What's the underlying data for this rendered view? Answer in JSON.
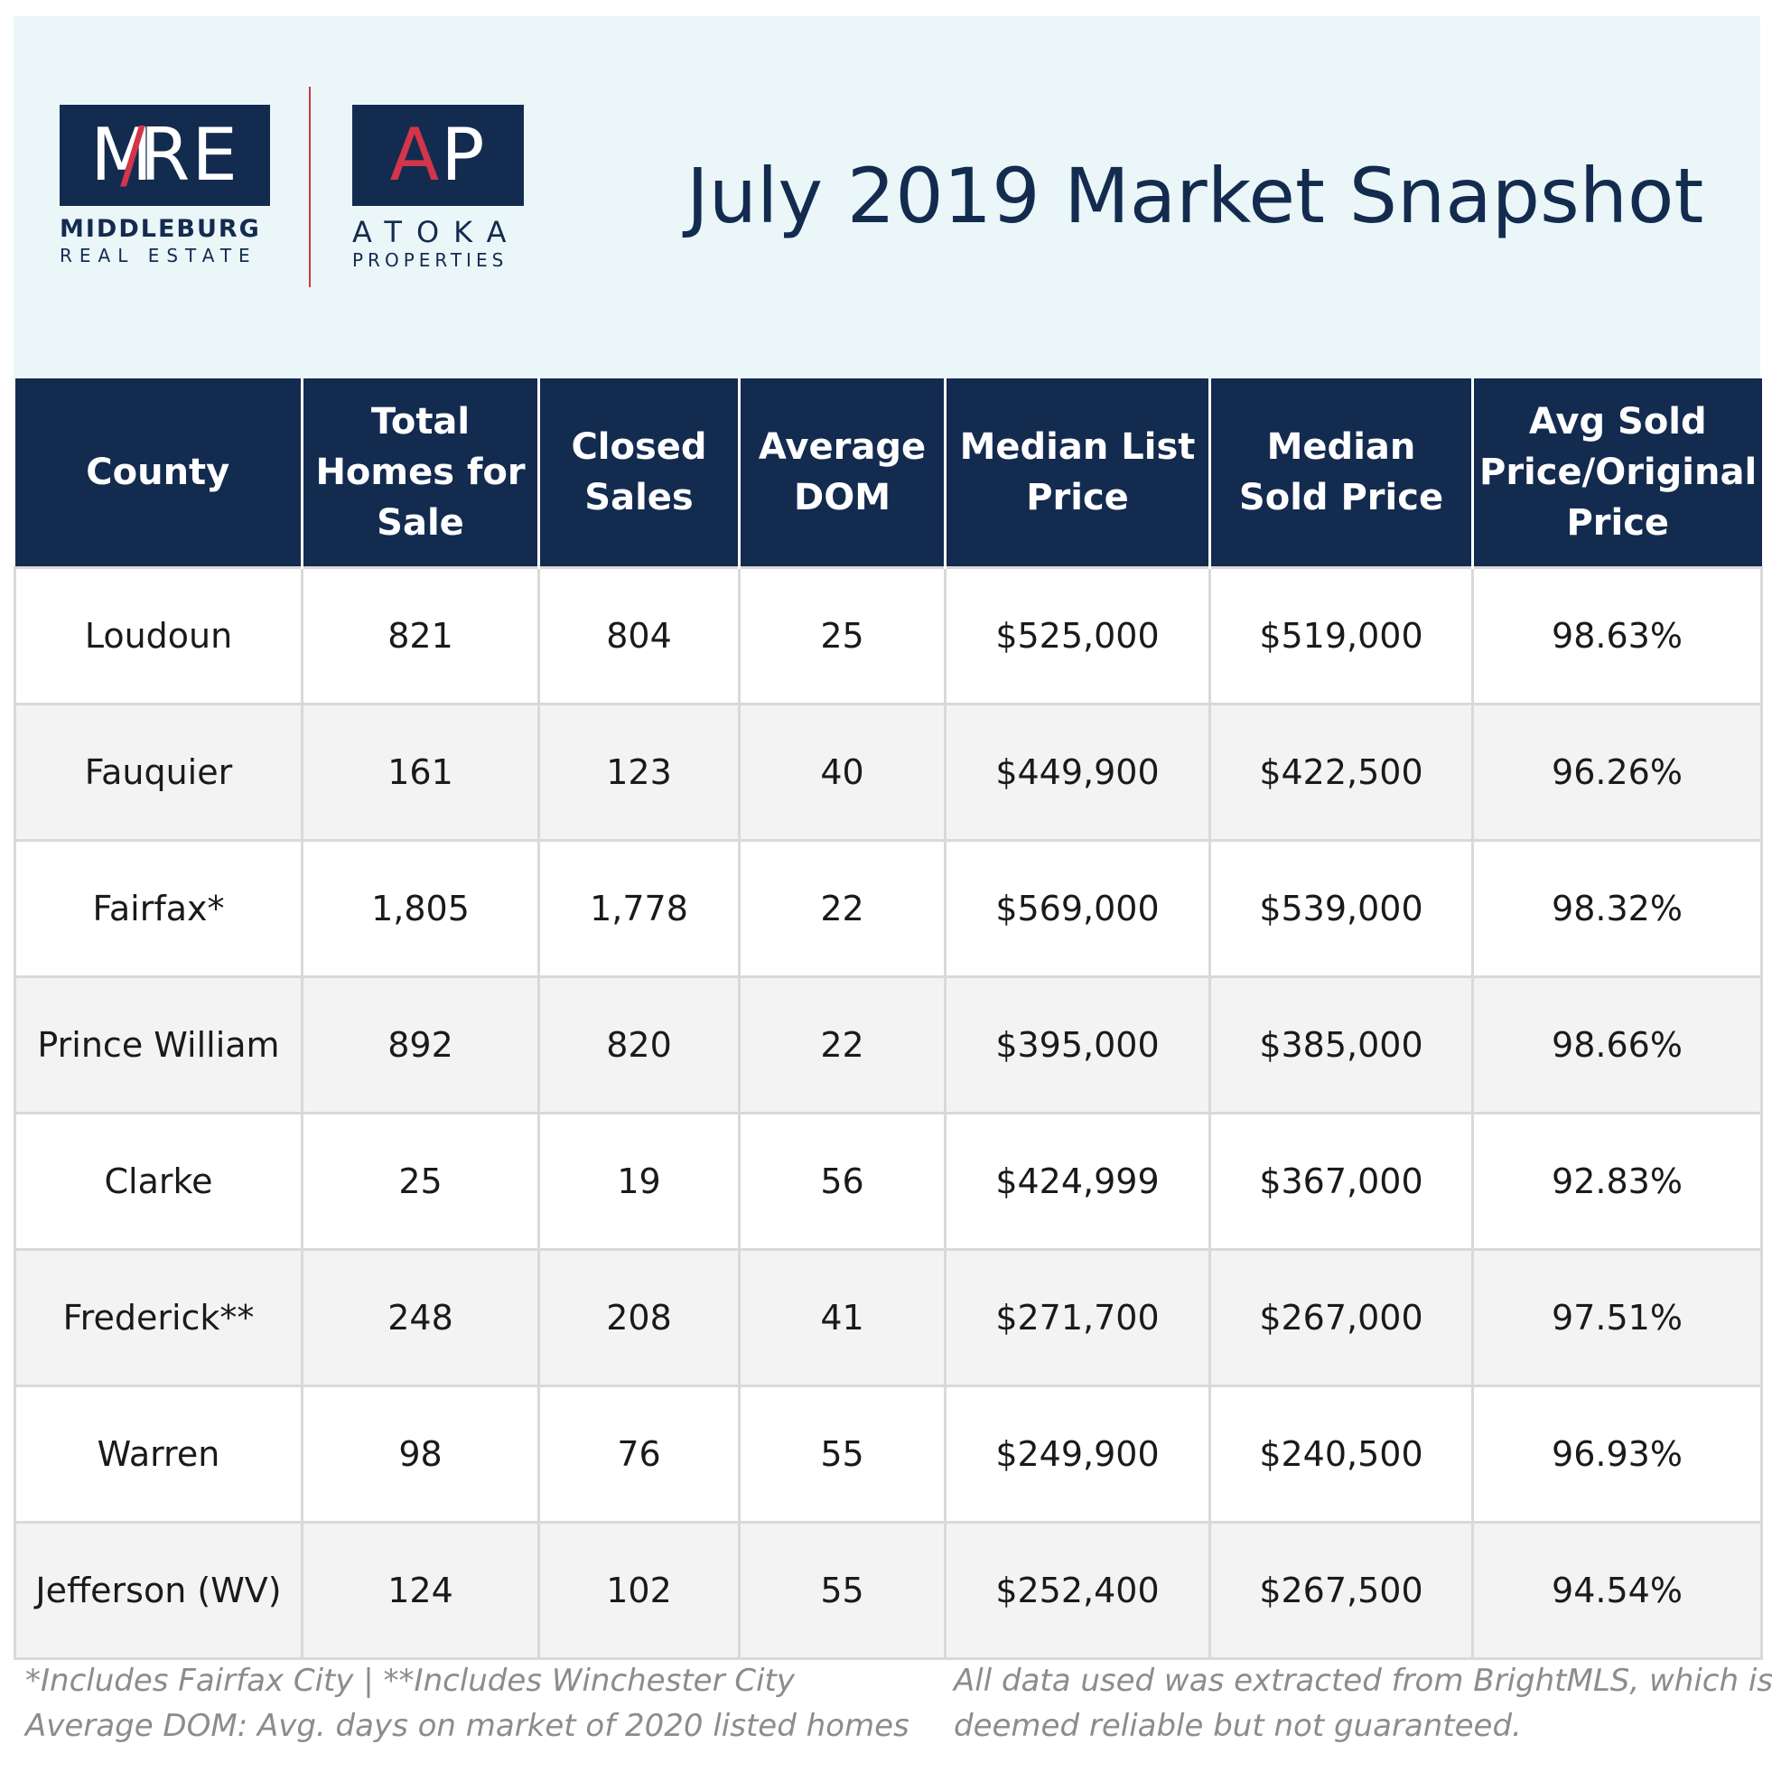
{
  "title": "July 2019 Market Snapshot",
  "logos": {
    "mre": {
      "mark_first": "M",
      "mark_accent": "/",
      "mark_rest": "RE",
      "line1": "MIDDLEBURG",
      "line2": "REAL ESTATE"
    },
    "ap": {
      "mark_accent": "A",
      "mark_rest": "P",
      "line1": "ATOKA",
      "line2": "PROPERTIES"
    }
  },
  "colors": {
    "navy": "#142b50",
    "accent_red": "#d3354a",
    "header_bg": "#eaf6f7",
    "row_alt": "#f3f3f3",
    "grid": "#d9d9d9",
    "footnote": "#8c8c8c"
  },
  "table": {
    "headers": [
      "County",
      "Total Homes for Sale",
      "Closed Sales",
      "Average DOM",
      "Median List Price",
      "Median Sold Price",
      "Avg Sold Price/Original Price"
    ],
    "rows": [
      [
        "Loudoun",
        "821",
        "804",
        "25",
        "$525,000",
        "$519,000",
        "98.63%"
      ],
      [
        "Fauquier",
        "161",
        "123",
        "40",
        "$449,900",
        "$422,500",
        "96.26%"
      ],
      [
        "Fairfax*",
        "1,805",
        "1,778",
        "22",
        "$569,000",
        "$539,000",
        "98.32%"
      ],
      [
        "Prince William",
        "892",
        "820",
        "22",
        "$395,000",
        "$385,000",
        "98.66%"
      ],
      [
        "Clarke",
        "25",
        "19",
        "56",
        "$424,999",
        "$367,000",
        "92.83%"
      ],
      [
        "Frederick**",
        "248",
        "208",
        "41",
        "$271,700",
        "$267,000",
        "97.51%"
      ],
      [
        "Warren",
        "98",
        "76",
        "55",
        "$249,900",
        "$240,500",
        "96.93%"
      ],
      [
        "Jefferson (WV)",
        "124",
        "102",
        "55",
        "$252,400",
        "$267,500",
        "94.54%"
      ]
    ]
  },
  "footnotes": {
    "left": [
      "*Includes Fairfax City | **Includes Winchester City",
      "Average DOM: Avg. days on market of 2020 listed homes"
    ],
    "right": [
      "All data used was extracted from BrightMLS, which is",
      "deemed reliable but not guaranteed."
    ]
  }
}
